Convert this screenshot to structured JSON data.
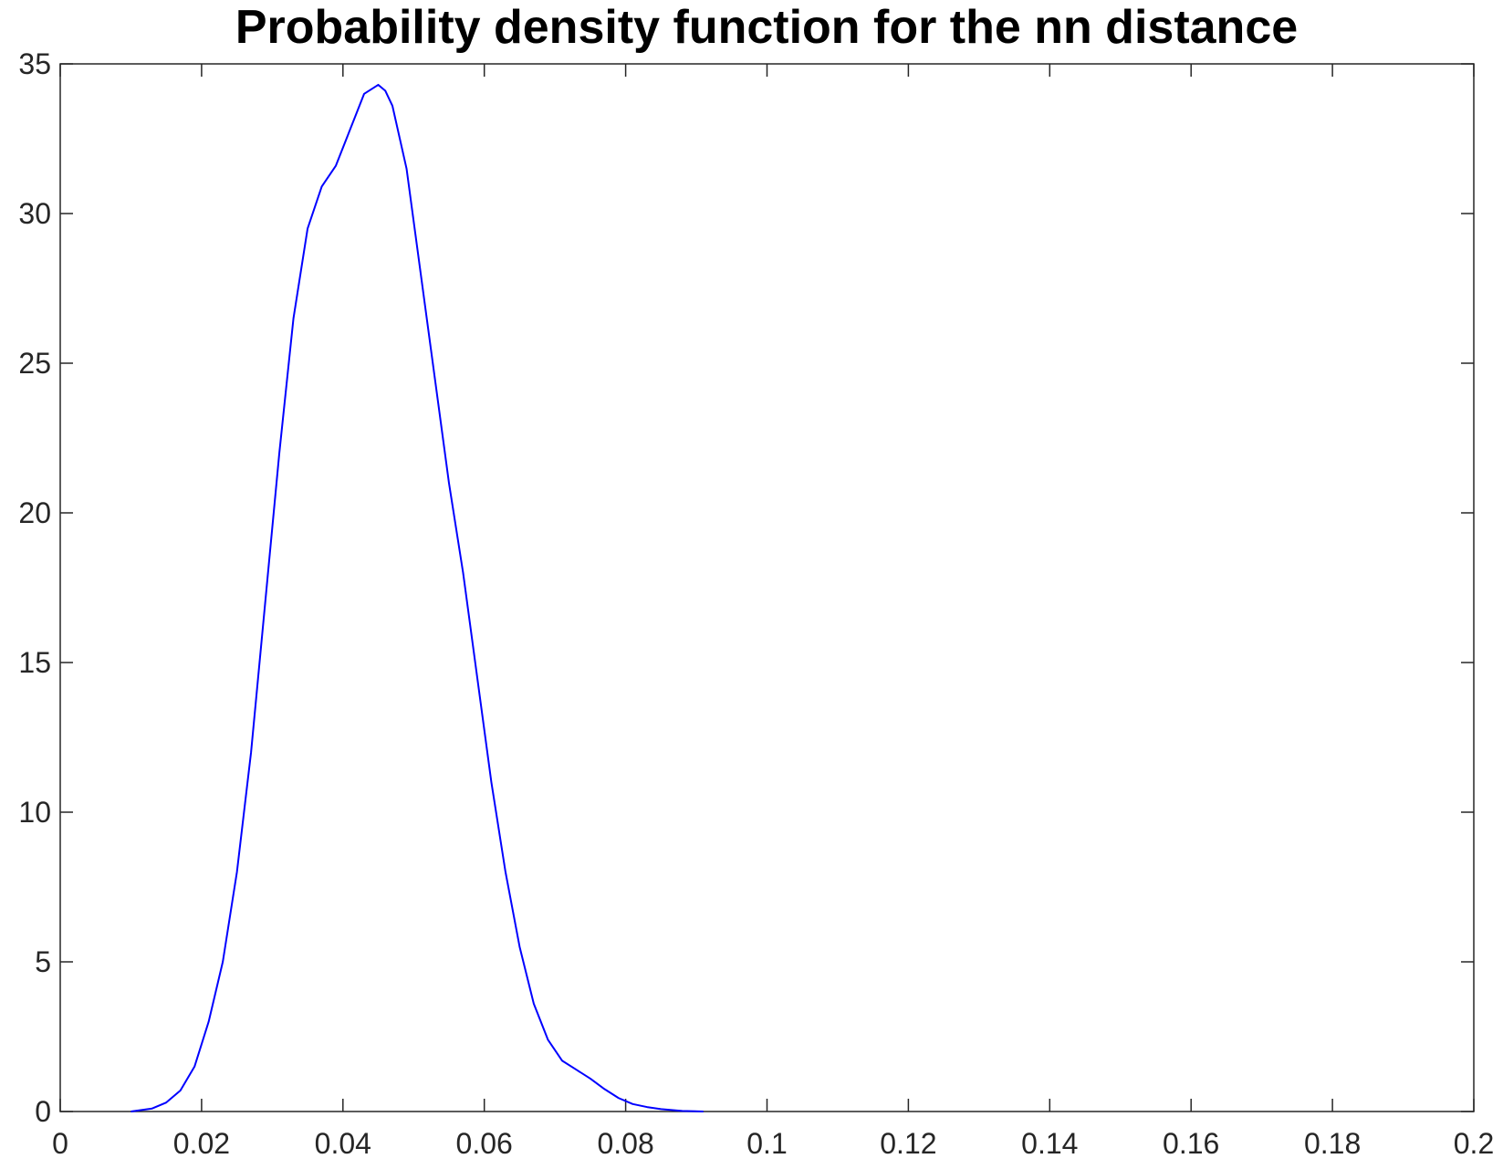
{
  "chart_data": {
    "type": "line",
    "title": "Probability density function for the nn distance",
    "xlim": [
      0,
      0.2
    ],
    "xticks": [
      0,
      0.02,
      0.04,
      0.06,
      0.08,
      0.1,
      0.12,
      0.14,
      0.16,
      0.18,
      0.2
    ],
    "ylim": [
      0,
      35
    ],
    "yticks": [
      0,
      5,
      10,
      15,
      20,
      25,
      30,
      35
    ],
    "grid": false,
    "series": [
      {
        "color": "#0000ff",
        "x": [
          0.01,
          0.013,
          0.015,
          0.017,
          0.019,
          0.021,
          0.023,
          0.025,
          0.027,
          0.029,
          0.031,
          0.033,
          0.035,
          0.037,
          0.039,
          0.041,
          0.043,
          0.045,
          0.046,
          0.047,
          0.049,
          0.051,
          0.053,
          0.055,
          0.057,
          0.059,
          0.061,
          0.063,
          0.065,
          0.067,
          0.069,
          0.071,
          0.073,
          0.075,
          0.077,
          0.079,
          0.081,
          0.083,
          0.085,
          0.088,
          0.091
        ],
        "values": [
          0,
          0.1,
          0.3,
          0.7,
          1.5,
          3,
          5,
          8,
          12,
          17,
          22,
          26.5,
          29.5,
          30.9,
          31.6,
          32.8,
          34.0,
          34.3,
          34.1,
          33.6,
          31.5,
          28,
          24.5,
          21,
          18,
          14.5,
          11,
          8,
          5.5,
          3.6,
          2.4,
          1.7,
          1.4,
          1.1,
          0.75,
          0.45,
          0.25,
          0.15,
          0.08,
          0.02,
          0
        ]
      }
    ]
  }
}
